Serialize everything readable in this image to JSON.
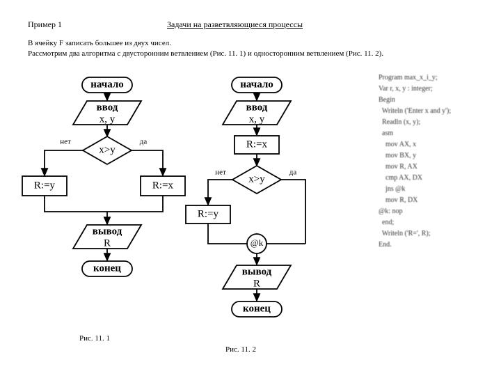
{
  "header": {
    "example_label": "Пример 1",
    "title": "Задачи на разветвляющиеся процессы"
  },
  "description": {
    "line1": "В ячейку F записать большее из двух чисел.",
    "line2": "Рассмотрим два алгоритма с двусторонним ветвлением (Рис. 11. 1) и односторонним ветвлением (Рис. 11. 2)."
  },
  "flow1": {
    "start": "начало",
    "input_l1": "ввод",
    "input_l2": "x, y",
    "cond": "x>y",
    "yes": "да",
    "no": "нет",
    "left_box": "R:=y",
    "right_box": "R:=x",
    "output_l1": "вывод",
    "output_l2": "R",
    "end": "конец",
    "caption": "Рис. 11. 1"
  },
  "flow2": {
    "start": "начало",
    "input_l1": "ввод",
    "input_l2": "x, y",
    "assign": "R:=x",
    "cond": "x>y",
    "yes": "да",
    "no": "нет",
    "left_box": "R:=y",
    "label_k": "@k",
    "output_l1": "вывод",
    "output_l2": "R",
    "end": "конец",
    "caption": "Рис. 11. 2"
  },
  "code_listing": "Program max_x_i_y;\nVar r, x, y : integer;\nBegin\n  Writeln ('Enter x and y');\n  Readln (x, y);\n  asm\n    mov AX, x\n    mov BX, y\n    mov R, AX\n    cmp AX, DX\n    jns @k\n    mov R, DX\n@k: nop\n  end;\n  Writeln ('R=', R);\nEnd.",
  "style": {
    "stroke": "#000000",
    "stroke_width": 1.8,
    "font_big": 15,
    "font_small": 11
  }
}
